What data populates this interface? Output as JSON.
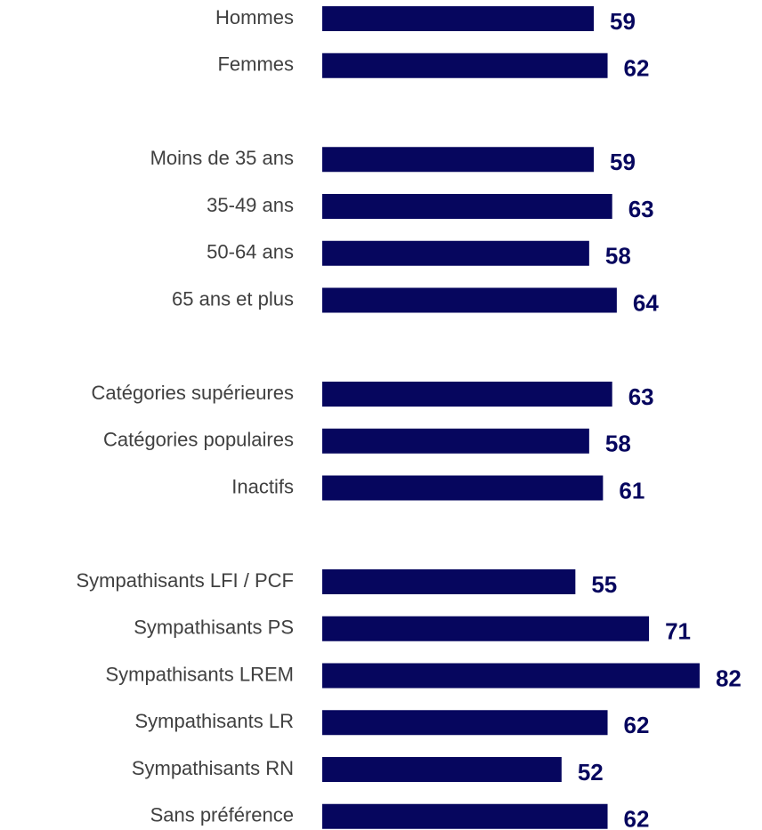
{
  "chart_data": {
    "type": "barh",
    "categories": [
      "Hommes",
      "Femmes",
      null,
      "Moins de 35 ans",
      "35-49 ans",
      "50-64 ans",
      "65 ans et plus",
      null,
      "Catégories supérieures",
      "Catégories populaires",
      "Inactifs",
      null,
      "Sympathisants LFI / PCF",
      "Sympathisants PS",
      "Sympathisants LREM",
      "Sympathisants LR",
      "Sympathisants RN",
      "Sans préférence"
    ],
    "values": [
      59,
      62,
      null,
      59,
      63,
      58,
      64,
      null,
      63,
      58,
      61,
      null,
      55,
      71,
      82,
      62,
      52,
      62
    ],
    "color": "#06065e",
    "xlim": [
      0,
      100
    ]
  }
}
